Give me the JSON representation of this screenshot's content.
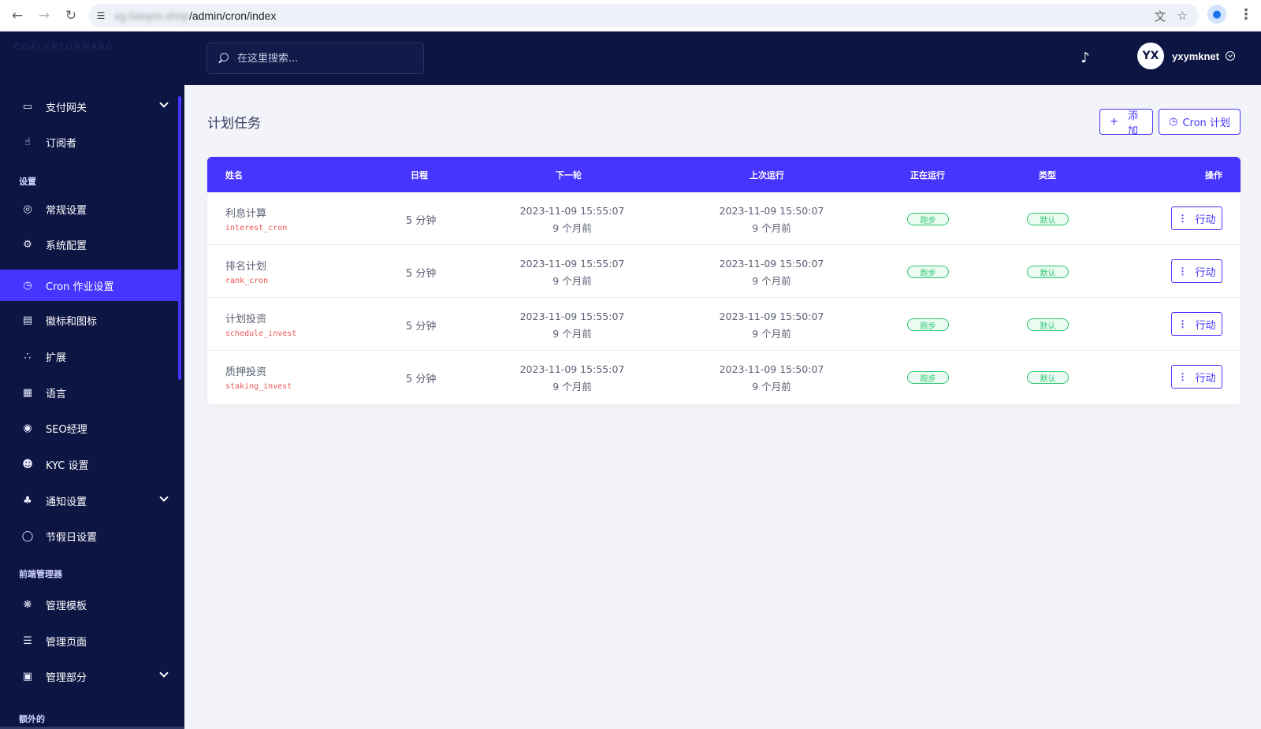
{
  "browser": {
    "url_host_blurred": "xg.haoym.shop",
    "url_path": "/admin/cron/index"
  },
  "sidebar": {
    "logo_text": "COALERTORWARD",
    "items": [
      {
        "label": "支付网关",
        "icon": "credit-card-icon",
        "has_caret": true
      },
      {
        "label": "订阅者",
        "icon": "thumbs-up-icon",
        "has_caret": false
      }
    ],
    "section_settings": "设置",
    "settings_items": [
      {
        "label": "常规设置",
        "icon": "life-ring-icon"
      },
      {
        "label": "系统配置",
        "icon": "gear-icon"
      },
      {
        "label": "Cron 作业设置",
        "icon": "clock-icon",
        "active": true
      },
      {
        "label": "徽标和图标",
        "icon": "images-icon"
      },
      {
        "label": "扩展",
        "icon": "cubes-icon"
      },
      {
        "label": "语言",
        "icon": "language-icon"
      },
      {
        "label": "SEO经理",
        "icon": "globe-icon"
      },
      {
        "label": "KYC 设置",
        "icon": "user-check-icon"
      },
      {
        "label": "通知设置",
        "icon": "bell-icon",
        "has_caret": true
      },
      {
        "label": "节假日设置",
        "icon": "toggle-icon"
      }
    ],
    "section_frontend": "前端管理器",
    "frontend_items": [
      {
        "label": "管理模板",
        "icon": "puzzle-icon"
      },
      {
        "label": "管理页面",
        "icon": "list-icon",
        "has_caret": false
      },
      {
        "label": "管理部分",
        "icon": "file-icon",
        "has_caret": true
      }
    ],
    "section_extra": "额外的"
  },
  "header": {
    "search_placeholder": "在这里搜索...",
    "username": "yxymknet",
    "avatar_text": "YX"
  },
  "page": {
    "title": "计划任务",
    "add_button": "添加",
    "cron_button": "Cron 计划"
  },
  "table": {
    "columns": [
      "姓名",
      "日程",
      "下一轮",
      "上次运行",
      "正在运行",
      "类型",
      "操作"
    ],
    "rows": [
      {
        "name": "利息计算",
        "code": "interest_cron",
        "schedule": "5 分钟",
        "next": "2023-11-09 15:55:07",
        "next_rel": "9 个月前",
        "last": "2023-11-09 15:50:07",
        "last_rel": "9 个月前",
        "running": "跑步",
        "type": "默认",
        "action": "行动"
      },
      {
        "name": "排名计划",
        "code": "rank_cron",
        "schedule": "5 分钟",
        "next": "2023-11-09 15:55:07",
        "next_rel": "9 个月前",
        "last": "2023-11-09 15:50:07",
        "last_rel": "9 个月前",
        "running": "跑步",
        "type": "默认",
        "action": "行动"
      },
      {
        "name": "计划投资",
        "code": "schedule_invest",
        "schedule": "5 分钟",
        "next": "2023-11-09 15:55:07",
        "next_rel": "9 个月前",
        "last": "2023-11-09 15:50:07",
        "last_rel": "9 个月前",
        "running": "跑步",
        "type": "默认",
        "action": "行动"
      },
      {
        "name": "质押投资",
        "code": "staking_invest",
        "schedule": "5 分钟",
        "next": "2023-11-09 15:55:07",
        "next_rel": "9 个月前",
        "last": "2023-11-09 15:50:07",
        "last_rel": "9 个月前",
        "running": "跑步",
        "type": "默认",
        "action": "行动"
      }
    ]
  },
  "colors": {
    "sidebar_bg": "#0d1543",
    "accent": "#4634ff",
    "success": "#28c76f",
    "code_text": "#ea5455"
  }
}
